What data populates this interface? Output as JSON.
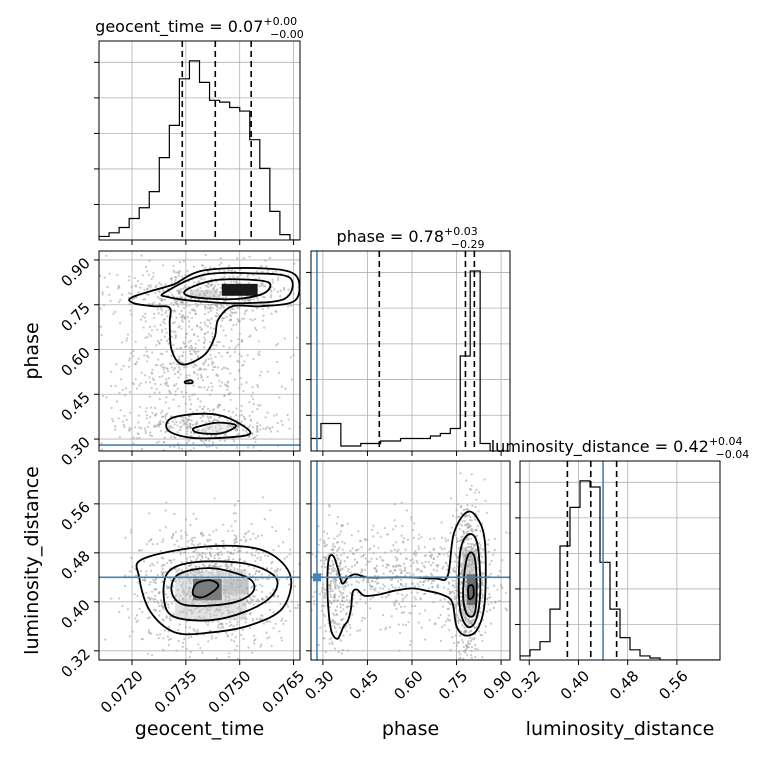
{
  "chart_data": {
    "type": "corner",
    "parameters": [
      "geocent_time",
      "phase",
      "luminosity_distance"
    ],
    "axis_labels": {
      "geocent_time": "geocent_time",
      "phase": "phase",
      "luminosity_distance": "luminosity_distance"
    },
    "titles": {
      "geocent_time": {
        "prefix": "geocent_time = 0.07",
        "upper": "+0.00",
        "lower": "−0.00"
      },
      "phase": {
        "prefix": "phase = 0.78",
        "upper": "+0.03",
        "lower": "−0.29"
      },
      "luminosity_distance": {
        "prefix": "luminosity_distance = 0.42",
        "upper": "+0.04",
        "lower": "−0.04"
      }
    },
    "ranges": {
      "geocent_time": [
        0.07108,
        0.07668
      ],
      "phase": [
        0.26,
        0.93
      ],
      "luminosity_distance": [
        0.305,
        0.63
      ]
    },
    "ticks": {
      "geocent_time": {
        "values": [
          0.072,
          0.0735,
          0.075,
          0.0765
        ],
        "labels": [
          "0.0720",
          "0.0735",
          "0.0750",
          "0.0765"
        ]
      },
      "phase": {
        "values": [
          0.3,
          0.45,
          0.6,
          0.75,
          0.9
        ],
        "labels": [
          "0.30",
          "0.45",
          "0.60",
          "0.75",
          "0.90"
        ]
      },
      "luminosity_distance": {
        "values": [
          0.32,
          0.4,
          0.48,
          0.56
        ],
        "labels": [
          "0.32",
          "0.40",
          "0.48",
          "0.56"
        ]
      }
    },
    "truths": {
      "geocent_time": null,
      "phase": 0.28,
      "luminosity_distance": 0.44
    },
    "quantiles": {
      "geocent_time": [
        0.0734,
        0.07432,
        0.07532
      ],
      "phase": [
        0.49,
        0.78,
        0.81
      ],
      "luminosity_distance": [
        0.382,
        0.42,
        0.462
      ]
    },
    "histograms": {
      "geocent_time": {
        "edges": [
          0.07108,
          0.07136,
          0.07164,
          0.07192,
          0.0722,
          0.07248,
          0.07276,
          0.07304,
          0.07332,
          0.0736,
          0.07388,
          0.07416,
          0.07444,
          0.07472,
          0.075,
          0.07528,
          0.07556,
          0.07584,
          0.07612,
          0.0764,
          0.07668
        ],
        "counts": [
          2,
          4,
          7,
          12,
          18,
          27,
          46,
          64,
          90,
          100,
          88,
          78,
          77,
          74,
          72,
          56,
          40,
          16,
          3,
          0
        ]
      },
      "phase": {
        "edges": [
          0.26,
          0.2935,
          0.327,
          0.3605,
          0.394,
          0.4275,
          0.461,
          0.4945,
          0.528,
          0.5615,
          0.595,
          0.6285,
          0.662,
          0.6955,
          0.729,
          0.7625,
          0.796,
          0.8295,
          0.863,
          0.8965,
          0.93
        ],
        "counts": [
          5,
          11,
          11,
          2,
          2,
          3,
          3,
          4,
          4,
          5,
          5,
          5,
          6,
          7,
          9,
          38,
          72,
          3,
          0,
          0
        ]
      },
      "luminosity_distance": {
        "edges": [
          0.305,
          0.32125,
          0.3375,
          0.35375,
          0.37,
          0.38625,
          0.4025,
          0.41875,
          0.435,
          0.45125,
          0.4675,
          0.48375,
          0.5,
          0.51625,
          0.5325,
          0.54875,
          0.565,
          0.58125,
          0.5975,
          0.61375,
          0.63
        ],
        "counts": [
          2,
          5,
          9,
          25,
          56,
          75,
          88,
          85,
          48,
          25,
          11,
          5,
          2,
          1,
          0,
          0,
          0,
          0,
          0,
          0
        ]
      }
    },
    "contours_2d": {
      "phase_vs_geocent_time": [
        [
          [
            0.07352,
            0.8
          ],
          [
            0.0742,
            0.83
          ],
          [
            0.075,
            0.835
          ],
          [
            0.0758,
            0.825
          ],
          [
            0.0757,
            0.79
          ],
          [
            0.075,
            0.77
          ],
          [
            0.0742,
            0.77
          ],
          [
            0.07355,
            0.78
          ]
        ],
        [
          [
            0.0729,
            0.79
          ],
          [
            0.074,
            0.85
          ],
          [
            0.0754,
            0.855
          ],
          [
            0.0764,
            0.84
          ],
          [
            0.07625,
            0.77
          ],
          [
            0.075,
            0.755
          ],
          [
            0.0738,
            0.762
          ],
          [
            0.073,
            0.776
          ]
        ],
        [
          [
            0.072,
            0.775
          ],
          [
            0.073,
            0.812
          ],
          [
            0.0732,
            0.82
          ],
          [
            0.074,
            0.865
          ],
          [
            0.0756,
            0.872
          ],
          [
            0.07655,
            0.85
          ],
          [
            0.07655,
            0.765
          ],
          [
            0.0756,
            0.745
          ],
          [
            0.0748,
            0.745
          ],
          [
            0.0744,
            0.7
          ],
          [
            0.0743,
            0.64
          ],
          [
            0.074,
            0.58
          ],
          [
            0.0734,
            0.55
          ],
          [
            0.0731,
            0.6
          ],
          [
            0.07305,
            0.69
          ],
          [
            0.07305,
            0.74
          ],
          [
            0.0726,
            0.745
          ],
          [
            0.07205,
            0.755
          ]
        ],
        [
          [
            0.0738,
            0.34
          ],
          [
            0.0744,
            0.355
          ],
          [
            0.0749,
            0.345
          ],
          [
            0.0745,
            0.32
          ],
          [
            0.0739,
            0.32
          ],
          [
            0.0737,
            0.33
          ]
        ],
        [
          [
            0.0731,
            0.37
          ],
          [
            0.074,
            0.385
          ],
          [
            0.0747,
            0.37
          ],
          [
            0.0753,
            0.32
          ],
          [
            0.0746,
            0.305
          ],
          [
            0.0736,
            0.305
          ],
          [
            0.073,
            0.33
          ]
        ],
        [
          [
            0.07348,
            0.493
          ],
          [
            0.07365,
            0.497
          ],
          [
            0.07368,
            0.488
          ],
          [
            0.0735,
            0.487
          ]
        ]
      ],
      "luminosity_distance_vs_geocent_time": [
        [
          [
            0.0738,
            0.43
          ],
          [
            0.0742,
            0.435
          ],
          [
            0.0744,
            0.425
          ],
          [
            0.074,
            0.408
          ],
          [
            0.0737,
            0.412
          ]
        ],
        [
          [
            0.0733,
            0.445
          ],
          [
            0.0742,
            0.455
          ],
          [
            0.0752,
            0.44
          ],
          [
            0.0754,
            0.42
          ],
          [
            0.075,
            0.402
          ],
          [
            0.0742,
            0.394
          ],
          [
            0.0734,
            0.396
          ],
          [
            0.0731,
            0.418
          ]
        ],
        [
          [
            0.073,
            0.448
          ],
          [
            0.0738,
            0.465
          ],
          [
            0.0752,
            0.462
          ],
          [
            0.076,
            0.44
          ],
          [
            0.0759,
            0.41
          ],
          [
            0.0752,
            0.385
          ],
          [
            0.0742,
            0.37
          ],
          [
            0.0732,
            0.375
          ],
          [
            0.0729,
            0.4
          ]
        ],
        [
          [
            0.0723,
            0.47
          ],
          [
            0.074,
            0.49
          ],
          [
            0.0756,
            0.485
          ],
          [
            0.0764,
            0.445
          ],
          [
            0.0762,
            0.39
          ],
          [
            0.0753,
            0.362
          ],
          [
            0.0742,
            0.35
          ],
          [
            0.0732,
            0.35
          ],
          [
            0.0725,
            0.385
          ],
          [
            0.0722,
            0.44
          ]
        ]
      ],
      "luminosity_distance_vs_phase": [
        [
          [
            0.79,
            0.424
          ],
          [
            0.805,
            0.426
          ],
          [
            0.807,
            0.41
          ],
          [
            0.792,
            0.405
          ]
        ],
        [
          [
            0.78,
            0.46
          ],
          [
            0.795,
            0.48
          ],
          [
            0.812,
            0.47
          ],
          [
            0.818,
            0.42
          ],
          [
            0.81,
            0.38
          ],
          [
            0.785,
            0.38
          ],
          [
            0.772,
            0.41
          ]
        ],
        [
          [
            0.762,
            0.48
          ],
          [
            0.79,
            0.51
          ],
          [
            0.82,
            0.495
          ],
          [
            0.83,
            0.42
          ],
          [
            0.815,
            0.37
          ],
          [
            0.785,
            0.36
          ],
          [
            0.76,
            0.395
          ]
        ],
        [
          [
            0.74,
            0.51
          ],
          [
            0.78,
            0.545
          ],
          [
            0.815,
            0.54
          ],
          [
            0.845,
            0.5
          ],
          [
            0.845,
            0.4
          ],
          [
            0.82,
            0.355
          ],
          [
            0.78,
            0.345
          ],
          [
            0.75,
            0.36
          ],
          [
            0.735,
            0.4
          ],
          [
            0.7,
            0.412
          ],
          [
            0.65,
            0.418
          ],
          [
            0.6,
            0.422
          ],
          [
            0.54,
            0.418
          ],
          [
            0.49,
            0.412
          ],
          [
            0.44,
            0.41
          ],
          [
            0.415,
            0.42
          ],
          [
            0.4,
            0.415
          ],
          [
            0.395,
            0.39
          ],
          [
            0.385,
            0.37
          ],
          [
            0.37,
            0.36
          ],
          [
            0.35,
            0.34
          ],
          [
            0.33,
            0.35
          ],
          [
            0.32,
            0.38
          ],
          [
            0.315,
            0.43
          ],
          [
            0.32,
            0.47
          ],
          [
            0.335,
            0.475
          ],
          [
            0.35,
            0.455
          ],
          [
            0.365,
            0.43
          ],
          [
            0.385,
            0.44
          ],
          [
            0.41,
            0.445
          ],
          [
            0.45,
            0.44
          ],
          [
            0.52,
            0.44
          ],
          [
            0.6,
            0.44
          ],
          [
            0.68,
            0.438
          ],
          [
            0.72,
            0.442
          ]
        ]
      ]
    },
    "density_peaks": {
      "phase_vs_geocent_time": [
        {
          "x": 0.075,
          "y": 0.8,
          "w": 0.001,
          "h": 0.04,
          "level": 0.9
        },
        {
          "x": 0.074,
          "y": 0.785,
          "w": 0.0008,
          "h": 0.03,
          "level": 0.25
        },
        {
          "x": 0.0744,
          "y": 0.34,
          "w": 0.0008,
          "h": 0.03,
          "level": 0.12
        }
      ],
      "luminosity_distance_vs_geocent_time": [
        {
          "x": 0.0741,
          "y": 0.42,
          "w": 0.0008,
          "h": 0.035,
          "level": 0.9
        },
        {
          "x": 0.0749,
          "y": 0.425,
          "w": 0.0007,
          "h": 0.025,
          "level": 0.45
        },
        {
          "x": 0.0742,
          "y": 0.41,
          "w": 0.002,
          "h": 0.08,
          "level": 0.2
        }
      ],
      "luminosity_distance_vs_phase": [
        {
          "x": 0.8,
          "y": 0.42,
          "w": 0.03,
          "h": 0.05,
          "level": 0.9
        },
        {
          "x": 0.795,
          "y": 0.43,
          "w": 0.05,
          "h": 0.11,
          "level": 0.3
        }
      ]
    },
    "scatter_clouds": {
      "phase_vs_geocent_time": [
        {
          "cx": 0.0742,
          "cy": 0.79,
          "sx": 0.0012,
          "sy": 0.05,
          "n": 420
        },
        {
          "cx": 0.0738,
          "cy": 0.6,
          "sx": 0.0009,
          "sy": 0.14,
          "n": 360
        },
        {
          "cx": 0.0733,
          "cy": 0.5,
          "sx": 0.0017,
          "sy": 0.2,
          "n": 450
        },
        {
          "cx": 0.0742,
          "cy": 0.34,
          "sx": 0.0011,
          "sy": 0.03,
          "n": 260
        }
      ],
      "luminosity_distance_vs_geocent_time": [
        {
          "cx": 0.0742,
          "cy": 0.425,
          "sx": 0.0011,
          "sy": 0.05,
          "n": 1100
        }
      ],
      "luminosity_distance_vs_phase": [
        {
          "cx": 0.79,
          "cy": 0.43,
          "sx": 0.03,
          "sy": 0.06,
          "n": 700
        },
        {
          "cx": 0.59,
          "cy": 0.44,
          "sx": 0.16,
          "sy": 0.045,
          "n": 520
        },
        {
          "cx": 0.34,
          "cy": 0.42,
          "sx": 0.03,
          "sy": 0.05,
          "n": 260
        }
      ]
    },
    "grid": true,
    "colors": {
      "truth": "#4682b4",
      "contour": "#000000",
      "scatter": "#9a9a9a",
      "histogram": "#000000",
      "grid": "#b0b0b0"
    }
  }
}
